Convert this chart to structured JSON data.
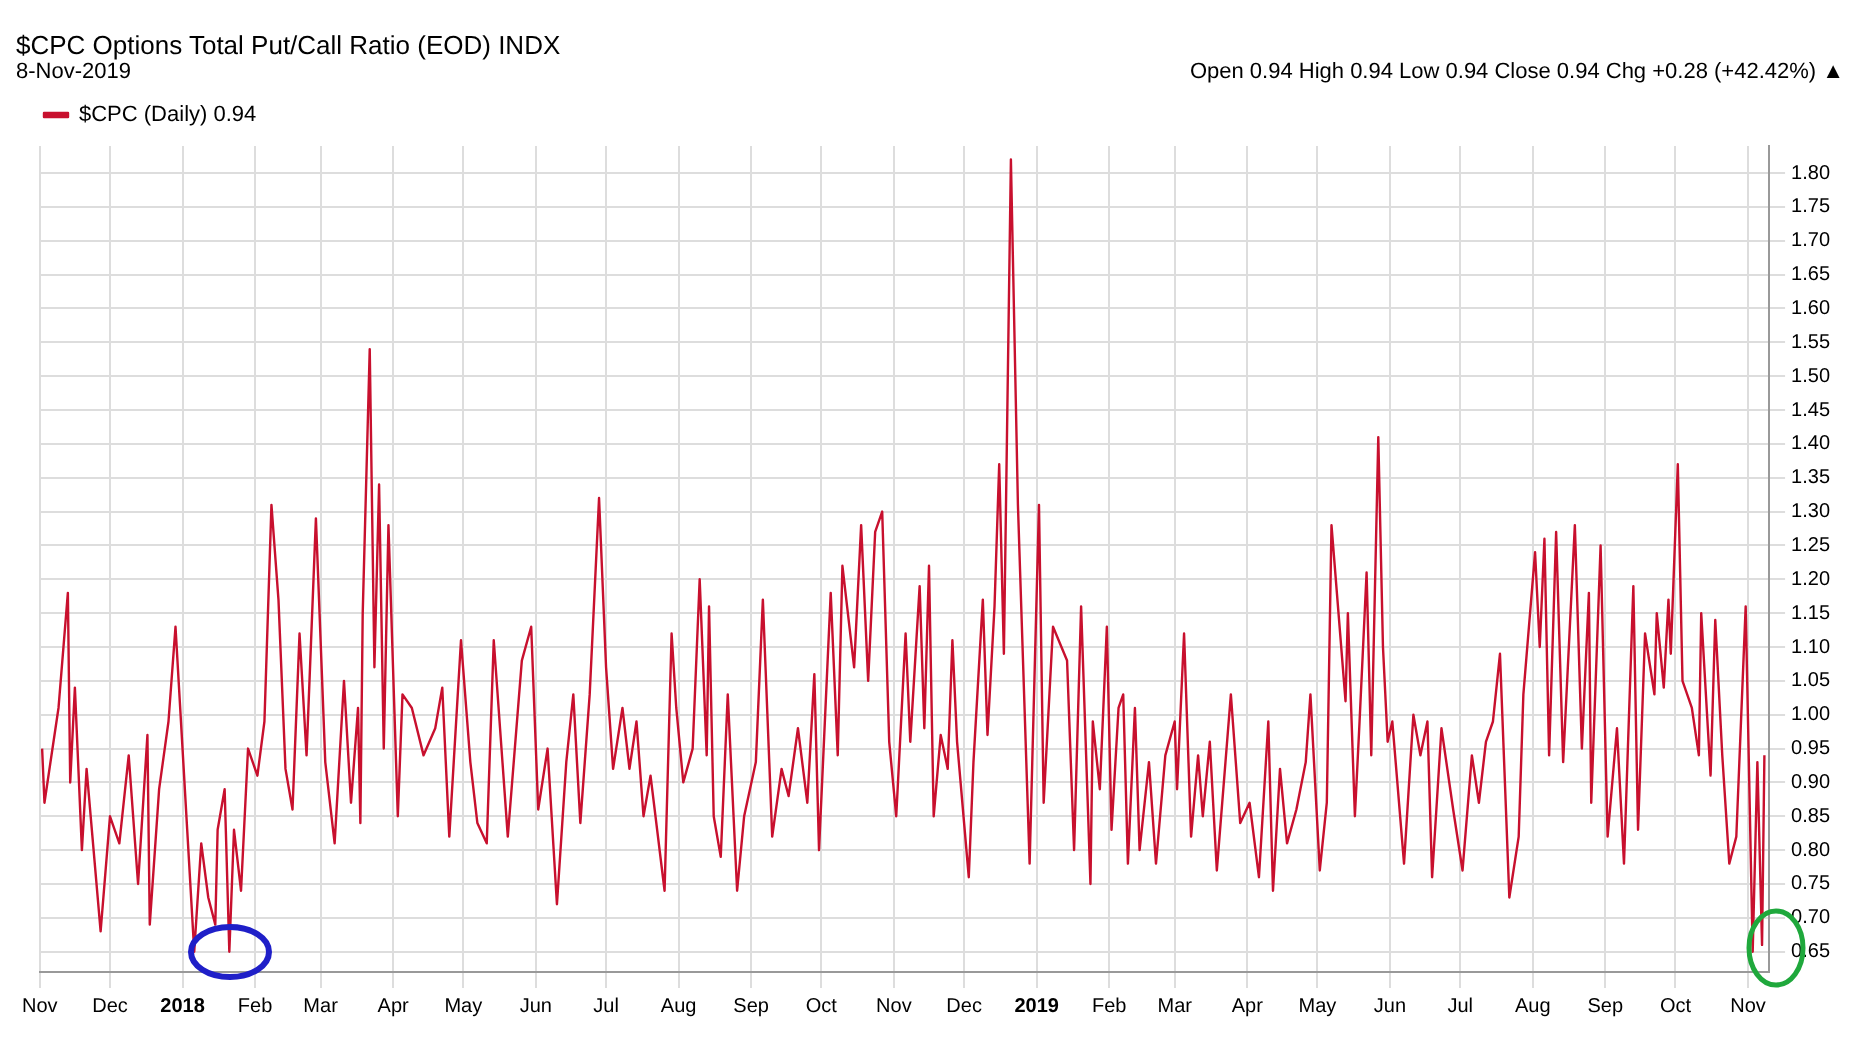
{
  "chart_data": {
    "type": "line",
    "title": "$CPC Options Total Put/Call Ratio (EOD) INDX",
    "subtitle": "8-Nov-2019",
    "annotations": [
      "Open 0.94 High 0.94 Low 0.94 Close 0.94 Chg +0.28 (+42.42%) ▲"
    ],
    "legend": "top left",
    "grid": true,
    "marker": "none",
    "line_style": "solid",
    "xlim": [
      "2017-11-01",
      "2019-11-10"
    ],
    "xticks": [
      {
        "value": "2017-11-01",
        "label": "Nov"
      },
      {
        "value": "2017-12-01",
        "label": "Dec"
      },
      {
        "value": "2018-01-01",
        "label": "2018"
      },
      {
        "value": "2018-02-01",
        "label": "Feb"
      },
      {
        "value": "2018-03-01",
        "label": "Mar"
      },
      {
        "value": "2018-04-01",
        "label": "Apr"
      },
      {
        "value": "2018-05-01",
        "label": "May"
      },
      {
        "value": "2018-06-01",
        "label": "Jun"
      },
      {
        "value": "2018-07-01",
        "label": "Jul"
      },
      {
        "value": "2018-08-01",
        "label": "Aug"
      },
      {
        "value": "2018-09-01",
        "label": "Sep"
      },
      {
        "value": "2018-10-01",
        "label": "Oct"
      },
      {
        "value": "2018-11-01",
        "label": "Nov"
      },
      {
        "value": "2018-12-01",
        "label": "Dec"
      },
      {
        "value": "2019-01-01",
        "label": "2019"
      },
      {
        "value": "2019-02-01",
        "label": "Feb"
      },
      {
        "value": "2019-03-01",
        "label": "Mar"
      },
      {
        "value": "2019-04-01",
        "label": "Apr"
      },
      {
        "value": "2019-05-01",
        "label": "May"
      },
      {
        "value": "2019-06-01",
        "label": "Jun"
      },
      {
        "value": "2019-07-01",
        "label": "Jul"
      },
      {
        "value": "2019-08-01",
        "label": "Aug"
      },
      {
        "value": "2019-09-01",
        "label": "Sep"
      },
      {
        "value": "2019-10-01",
        "label": "Oct"
      },
      {
        "value": "2019-11-01",
        "label": "Nov"
      }
    ],
    "ylim": [
      0.62,
      1.84
    ],
    "yticks": [
      0.65,
      {
        "value": 0.7,
        "label": "0.70"
      },
      0.75,
      {
        "value": 0.8,
        "label": "0.80"
      },
      0.85,
      {
        "value": 0.9,
        "label": "0.90"
      },
      0.95,
      {
        "value": 1,
        "label": "1.00"
      },
      1.05,
      {
        "value": 1.1,
        "label": "1.10"
      },
      1.15,
      {
        "value": 1.2,
        "label": "1.20"
      },
      1.25,
      {
        "value": 1.3,
        "label": "1.30"
      },
      1.35,
      {
        "value": 1.4,
        "label": "1.40"
      },
      1.45,
      {
        "value": 1.5,
        "label": "1.50"
      },
      1.55,
      {
        "value": 1.6,
        "label": "1.60"
      },
      1.65,
      {
        "value": 1.7,
        "label": "1.70"
      },
      1.75,
      {
        "value": 1.8,
        "label": "1.80"
      }
    ],
    "x": [
      "2017-11-02",
      "2017-11-03",
      "2017-11-09",
      "2017-11-13",
      "2017-11-14",
      "2017-11-16",
      "2017-11-19",
      "2017-11-21",
      "2017-11-27",
      "2017-12-01",
      "2017-12-05",
      "2017-12-09",
      "2017-12-13",
      "2017-12-17",
      "2017-12-18",
      "2017-12-22",
      "2017-12-26",
      "2017-12-29",
      "2018-01-01",
      "2018-01-03",
      "2018-01-06",
      "2018-01-09",
      "2018-01-12",
      "2018-01-15",
      "2018-01-16",
      "2018-01-19",
      "2018-01-21",
      "2018-01-23",
      "2018-01-26",
      "2018-01-29",
      "2018-02-02",
      "2018-02-05",
      "2018-02-08",
      "2018-02-11",
      "2018-02-14",
      "2018-02-17",
      "2018-02-20",
      "2018-02-23",
      "2018-02-27",
      "2018-03-03",
      "2018-03-07",
      "2018-03-11",
      "2018-03-14",
      "2018-03-17",
      "2018-03-18",
      "2018-03-19",
      "2018-03-22",
      "2018-03-24",
      "2018-03-26",
      "2018-03-28",
      "2018-03-30",
      "2018-04-03",
      "2018-04-05",
      "2018-04-09",
      "2018-04-14",
      "2018-04-19",
      "2018-04-22",
      "2018-04-25",
      "2018-04-30",
      "2018-05-04",
      "2018-05-07",
      "2018-05-11",
      "2018-05-14",
      "2018-05-20",
      "2018-05-26",
      "2018-05-30",
      "2018-06-02",
      "2018-06-06",
      "2018-06-10",
      "2018-06-14",
      "2018-06-17",
      "2018-06-20",
      "2018-06-24",
      "2018-06-28",
      "2018-07-01",
      "2018-07-04",
      "2018-07-08",
      "2018-07-11",
      "2018-07-14",
      "2018-07-17",
      "2018-07-20",
      "2018-07-26",
      "2018-07-29",
      "2018-07-31",
      "2018-08-03",
      "2018-08-07",
      "2018-08-10",
      "2018-08-13",
      "2018-08-14",
      "2018-08-16",
      "2018-08-19",
      "2018-08-22",
      "2018-08-26",
      "2018-08-29",
      "2018-09-03",
      "2018-09-06",
      "2018-09-10",
      "2018-09-14",
      "2018-09-17",
      "2018-09-21",
      "2018-09-25",
      "2018-09-28",
      "2018-09-30",
      "2018-10-05",
      "2018-10-08",
      "2018-10-10",
      "2018-10-15",
      "2018-10-18",
      "2018-10-21",
      "2018-10-24",
      "2018-10-27",
      "2018-10-30",
      "2018-11-02",
      "2018-11-06",
      "2018-11-08",
      "2018-11-12",
      "2018-11-14",
      "2018-11-16",
      "2018-11-18",
      "2018-11-21",
      "2018-11-24",
      "2018-11-26",
      "2018-11-28",
      "2018-12-01",
      "2018-12-03",
      "2018-12-05",
      "2018-12-09",
      "2018-12-11",
      "2018-12-14",
      "2018-12-16",
      "2018-12-18",
      "2018-12-21",
      "2018-12-24",
      "2018-12-29",
      "2019-01-02",
      "2019-01-04",
      "2019-01-08",
      "2019-01-14",
      "2019-01-17",
      "2019-01-20",
      "2019-01-24",
      "2019-01-25",
      "2019-01-28",
      "2019-01-31",
      "2019-02-02",
      "2019-02-05",
      "2019-02-07",
      "2019-02-09",
      "2019-02-12",
      "2019-02-14",
      "2019-02-18",
      "2019-02-21",
      "2019-02-25",
      "2019-03-01",
      "2019-03-02",
      "2019-03-05",
      "2019-03-08",
      "2019-03-11",
      "2019-03-13",
      "2019-03-16",
      "2019-03-19",
      "2019-03-25",
      "2019-03-29",
      "2019-04-02",
      "2019-04-06",
      "2019-04-10",
      "2019-04-12",
      "2019-04-15",
      "2019-04-18",
      "2019-04-22",
      "2019-04-26",
      "2019-04-28",
      "2019-05-02",
      "2019-05-05",
      "2019-05-07",
      "2019-05-10",
      "2019-05-13",
      "2019-05-14",
      "2019-05-17",
      "2019-05-19",
      "2019-05-22",
      "2019-05-24",
      "2019-05-27",
      "2019-05-29",
      "2019-05-31",
      "2019-06-02",
      "2019-06-07",
      "2019-06-11",
      "2019-06-14",
      "2019-06-17",
      "2019-06-19",
      "2019-06-23",
      "2019-06-28",
      "2019-07-02",
      "2019-07-06",
      "2019-07-09",
      "2019-07-12",
      "2019-07-15",
      "2019-07-18",
      "2019-07-22",
      "2019-07-26",
      "2019-07-28",
      "2019-08-02",
      "2019-08-04",
      "2019-08-06",
      "2019-08-08",
      "2019-08-11",
      "2019-08-14",
      "2019-08-19",
      "2019-08-22",
      "2019-08-25",
      "2019-08-26",
      "2019-08-30",
      "2019-09-02",
      "2019-09-06",
      "2019-09-09",
      "2019-09-13",
      "2019-09-15",
      "2019-09-18",
      "2019-09-22",
      "2019-09-23",
      "2019-09-26",
      "2019-09-28",
      "2019-09-29",
      "2019-10-02",
      "2019-10-04",
      "2019-10-08",
      "2019-10-11",
      "2019-10-12",
      "2019-10-16",
      "2019-10-18",
      "2019-10-21",
      "2019-10-24",
      "2019-10-27",
      "2019-10-31",
      "2019-11-03",
      "2019-11-05",
      "2019-11-07",
      "2019-11-08"
    ],
    "series": [
      {
        "name": "$CPC (Daily) 0.94",
        "color": "#c8102e",
        "values": [
          0.95,
          0.87,
          1.01,
          1.18,
          0.9,
          1.04,
          0.8,
          0.92,
          0.68,
          0.85,
          0.81,
          0.94,
          0.75,
          0.97,
          0.69,
          0.89,
          0.99,
          1.13,
          0.95,
          0.83,
          0.65,
          0.81,
          0.73,
          0.69,
          0.83,
          0.89,
          0.65,
          0.83,
          0.74,
          0.95,
          0.91,
          0.99,
          1.31,
          1.17,
          0.92,
          0.86,
          1.12,
          0.94,
          1.29,
          0.93,
          0.81,
          1.05,
          0.87,
          1.01,
          0.84,
          1.15,
          1.54,
          1.07,
          1.34,
          0.95,
          1.28,
          0.85,
          1.03,
          1.01,
          0.94,
          0.98,
          1.04,
          0.82,
          1.11,
          0.93,
          0.84,
          0.81,
          1.11,
          0.82,
          1.08,
          1.13,
          0.86,
          0.95,
          0.72,
          0.93,
          1.03,
          0.84,
          1.03,
          1.32,
          1.07,
          0.92,
          1.01,
          0.92,
          0.99,
          0.85,
          0.91,
          0.74,
          1.12,
          1.01,
          0.9,
          0.95,
          1.2,
          0.94,
          1.16,
          0.85,
          0.79,
          1.03,
          0.74,
          0.85,
          0.93,
          1.17,
          0.82,
          0.92,
          0.88,
          0.98,
          0.87,
          1.06,
          0.8,
          1.18,
          0.94,
          1.22,
          1.07,
          1.28,
          1.05,
          1.27,
          1.3,
          0.96,
          0.85,
          1.12,
          0.96,
          1.19,
          0.98,
          1.22,
          0.85,
          0.97,
          0.92,
          1.11,
          0.96,
          0.84,
          0.76,
          0.93,
          1.17,
          0.97,
          1.16,
          1.37,
          1.09,
          1.82,
          1.31,
          0.78,
          1.31,
          0.87,
          1.13,
          1.08,
          0.8,
          1.16,
          0.75,
          0.99,
          0.89,
          1.13,
          0.83,
          1.01,
          1.03,
          0.78,
          1.01,
          0.8,
          0.93,
          0.78,
          0.94,
          0.99,
          0.89,
          1.12,
          0.82,
          0.94,
          0.85,
          0.96,
          0.77,
          1.03,
          0.84,
          0.87,
          0.76,
          0.99,
          0.74,
          0.92,
          0.81,
          0.86,
          0.93,
          1.03,
          0.77,
          0.87,
          1.28,
          1.15,
          1.02,
          1.15,
          0.85,
          0.99,
          1.21,
          0.94,
          1.41,
          1.1,
          0.96,
          0.99,
          0.78,
          1.0,
          0.94,
          0.99,
          0.76,
          0.98,
          0.86,
          0.77,
          0.94,
          0.87,
          0.96,
          0.99,
          1.09,
          0.73,
          0.82,
          1.03,
          1.24,
          1.1,
          1.26,
          0.94,
          1.27,
          0.93,
          1.28,
          0.95,
          1.18,
          0.87,
          1.25,
          0.82,
          0.98,
          0.78,
          1.19,
          0.83,
          1.12,
          1.03,
          1.15,
          1.04,
          1.17,
          1.09,
          1.37,
          1.05,
          1.01,
          0.94,
          1.15,
          0.91,
          1.14,
          0.94,
          0.78,
          0.82,
          1.16,
          0.65,
          0.93,
          0.66,
          0.94
        ]
      }
    ]
  }
}
